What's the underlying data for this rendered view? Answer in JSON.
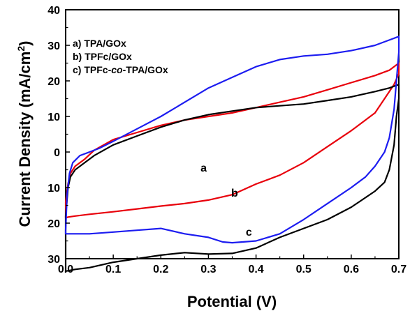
{
  "chart_data": {
    "type": "line",
    "xlabel": "Potential (V)",
    "ylabel_prefix": "Current Density (mA/cm",
    "ylabel_sup": "2",
    "ylabel_suffix": ")",
    "xlim": [
      0.0,
      0.7
    ],
    "ylim": [
      -30,
      40
    ],
    "x_ticks": [
      0.0,
      0.1,
      0.2,
      0.3,
      0.4,
      0.5,
      0.6,
      0.7
    ],
    "x_tick_labels": [
      "0.0",
      "0.1",
      "0.2",
      "0.3",
      "0.4",
      "0.5",
      "0.6",
      "0.7"
    ],
    "y_ticks": [
      40,
      30,
      20,
      10,
      0,
      -10,
      -20,
      -30
    ],
    "y_tick_labels": [
      "40",
      "30",
      "20",
      "10",
      "0",
      "10",
      "20",
      "30"
    ],
    "grid": false,
    "legend_position": "top-left",
    "legend": [
      {
        "prefix": "a) TPA/GOx",
        "italic": "",
        "suffix": ""
      },
      {
        "prefix": "b) TPFc/GOx",
        "italic": "",
        "suffix": ""
      },
      {
        "prefix": "c) TPFc-",
        "italic": "co",
        "suffix": "-TPA/GOx"
      }
    ],
    "series": [
      {
        "label": "a",
        "color": "#e8000b",
        "label_point": [
          0.29,
          -5.5
        ],
        "x": [
          0.0,
          0.005,
          0.01,
          0.02,
          0.04,
          0.06,
          0.1,
          0.15,
          0.2,
          0.25,
          0.3,
          0.35,
          0.4,
          0.45,
          0.5,
          0.55,
          0.6,
          0.65,
          0.68,
          0.7,
          0.7,
          0.69,
          0.67,
          0.65,
          0.6,
          0.55,
          0.5,
          0.45,
          0.4,
          0.35,
          0.3,
          0.25,
          0.2,
          0.15,
          0.1,
          0.05,
          0.02,
          0.005,
          0.0,
          0.0
        ],
        "y": [
          -14,
          -9,
          -6,
          -4,
          -2,
          0.5,
          3.5,
          5.5,
          7.5,
          9,
          10,
          11,
          12.5,
          14,
          15.5,
          17.5,
          19.5,
          21.5,
          23,
          25,
          22,
          19,
          15,
          11,
          6,
          1.5,
          -3,
          -6.5,
          -9,
          -12,
          -13.5,
          -14.5,
          -15.2,
          -16,
          -16.8,
          -17.5,
          -18,
          -18.3,
          -18.5,
          -14
        ]
      },
      {
        "label": "b",
        "color": "#000000",
        "label_point": [
          0.355,
          -12.5
        ],
        "x": [
          0.0,
          0.005,
          0.01,
          0.02,
          0.04,
          0.06,
          0.1,
          0.15,
          0.2,
          0.25,
          0.3,
          0.35,
          0.4,
          0.45,
          0.5,
          0.55,
          0.6,
          0.65,
          0.68,
          0.7,
          0.7,
          0.695,
          0.69,
          0.68,
          0.67,
          0.65,
          0.6,
          0.55,
          0.5,
          0.45,
          0.4,
          0.35,
          0.3,
          0.25,
          0.2,
          0.15,
          0.1,
          0.05,
          0.02,
          0.0,
          0.0
        ],
        "y": [
          -18,
          -10,
          -7,
          -5,
          -3,
          -1,
          2,
          4.5,
          7,
          9,
          10.5,
          11.5,
          12.5,
          13,
          13.5,
          14.5,
          15.5,
          17,
          18,
          19,
          15,
          10,
          2,
          -5,
          -8.5,
          -11,
          -15.5,
          -19,
          -21.5,
          -24,
          -27,
          -28.5,
          -28.7,
          -28.3,
          -29,
          -30,
          -31,
          -32.5,
          -33,
          -33.5,
          -18
        ]
      },
      {
        "label": "c",
        "color": "#1c1cf0",
        "label_point": [
          0.385,
          -23.5
        ],
        "x": [
          0.0,
          0.003,
          0.008,
          0.015,
          0.03,
          0.05,
          0.07,
          0.1,
          0.15,
          0.2,
          0.25,
          0.3,
          0.35,
          0.4,
          0.45,
          0.5,
          0.55,
          0.6,
          0.65,
          0.68,
          0.7,
          0.7,
          0.695,
          0.69,
          0.68,
          0.67,
          0.66,
          0.65,
          0.63,
          0.6,
          0.55,
          0.5,
          0.45,
          0.4,
          0.35,
          0.33,
          0.3,
          0.25,
          0.2,
          0.15,
          0.1,
          0.05,
          0.02,
          0.0,
          0.0
        ],
        "y": [
          -22,
          -12,
          -6,
          -3,
          -1,
          0,
          1,
          3,
          6.5,
          10,
          14,
          18,
          21,
          24,
          26,
          27,
          27.5,
          28.5,
          30,
          31.5,
          32.5,
          28,
          20,
          12,
          4,
          0,
          -2,
          -4,
          -7,
          -10,
          -14.5,
          -19,
          -23,
          -25,
          -25.5,
          -25.3,
          -24,
          -23,
          -21.5,
          -22,
          -22.5,
          -23,
          -23,
          -23,
          -22
        ]
      }
    ]
  }
}
